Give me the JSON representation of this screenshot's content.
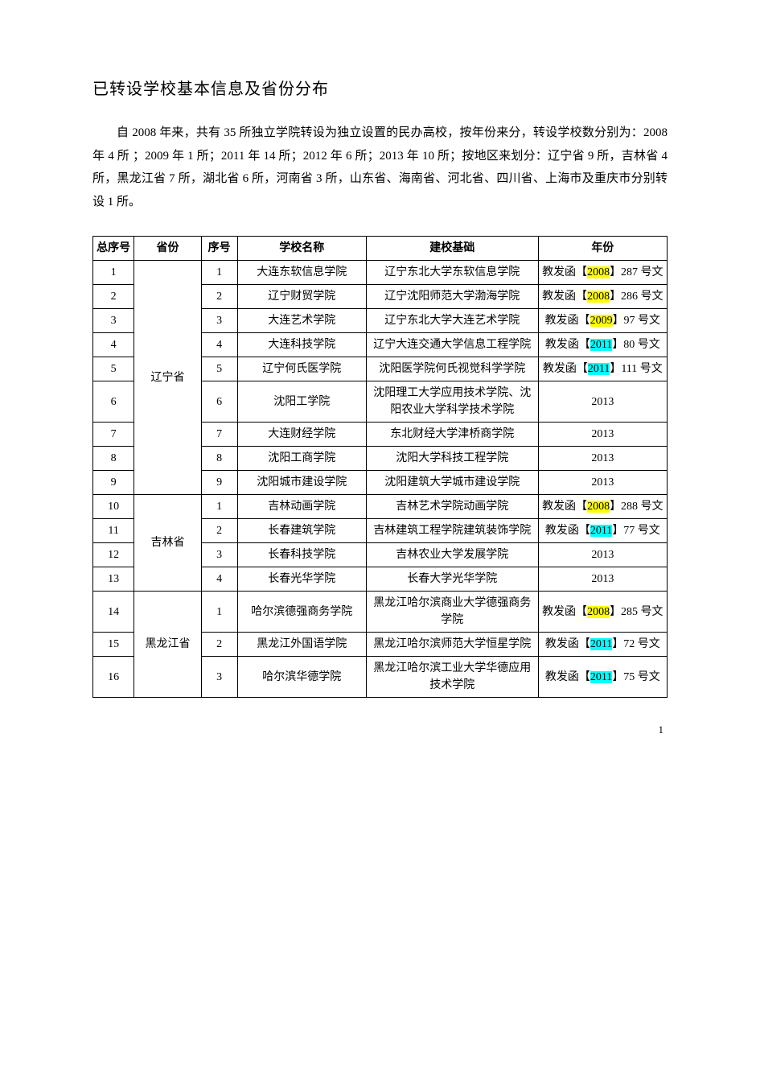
{
  "title": "已转设学校基本信息及省份分布",
  "intro": "自 2008 年来，共有 35 所独立学院转设为独立设置的民办高校，按年份来分，转设学校数分别为：2008 年 4 所 ；2009 年 1 所；2011 年 14 所；2012 年 6 所；2013 年 10 所；按地区来划分：辽宁省 9 所，吉林省 4 所，黑龙江省 7 所，湖北省 6 所，河南省 3 所，山东省、海南省、河北省、四川省、上海市及重庆市分别转设 1 所。",
  "columns": {
    "seq": "总序号",
    "province": "省份",
    "idx": "序号",
    "name": "学校名称",
    "basis": "建校基础",
    "year": "年份"
  },
  "highlight_colors": {
    "yellow": "#ffff00",
    "cyan": "#00ffff"
  },
  "provinces": [
    {
      "name": "辽宁省",
      "rows": [
        {
          "seq": "1",
          "idx": "1",
          "name": "大连东软信息学院",
          "basis": "辽宁东北大学东软信息学院",
          "year_pre": "教发函【",
          "year_hl": "2008",
          "year_post": "】287 号文",
          "hl": "yellow"
        },
        {
          "seq": "2",
          "idx": "2",
          "name": "辽宁财贸学院",
          "basis": "辽宁沈阳师范大学渤海学院",
          "year_pre": "教发函【",
          "year_hl": "2008",
          "year_post": "】286 号文",
          "hl": "yellow"
        },
        {
          "seq": "3",
          "idx": "3",
          "name": "大连艺术学院",
          "basis": "辽宁东北大学大连艺术学院",
          "year_pre": "教发函【",
          "year_hl": "2009",
          "year_post": "】97 号文",
          "hl": "yellow"
        },
        {
          "seq": "4",
          "idx": "4",
          "name": "大连科技学院",
          "basis": "辽宁大连交通大学信息工程学院",
          "year_pre": "教发函【",
          "year_hl": "2011",
          "year_post": "】80 号文",
          "hl": "cyan"
        },
        {
          "seq": "5",
          "idx": "5",
          "name": "辽宁何氏医学院",
          "basis": "沈阳医学院何氏视觉科学学院",
          "year_pre": "教发函【",
          "year_hl": "2011",
          "year_post": "】111 号文",
          "hl": "cyan"
        },
        {
          "seq": "6",
          "idx": "6",
          "name": "沈阳工学院",
          "basis": "沈阳理工大学应用技术学院、沈阳农业大学科学技术学院",
          "year_plain": "2013"
        },
        {
          "seq": "7",
          "idx": "7",
          "name": "大连财经学院",
          "basis": "东北财经大学津桥商学院",
          "year_plain": "2013"
        },
        {
          "seq": "8",
          "idx": "8",
          "name": "沈阳工商学院",
          "basis": "沈阳大学科技工程学院",
          "year_plain": "2013"
        },
        {
          "seq": "9",
          "idx": "9",
          "name": "沈阳城市建设学院",
          "basis": "沈阳建筑大学城市建设学院",
          "year_plain": "2013"
        }
      ]
    },
    {
      "name": "吉林省",
      "rows": [
        {
          "seq": "10",
          "idx": "1",
          "name": "吉林动画学院",
          "basis": "吉林艺术学院动画学院",
          "year_pre": "教发函【",
          "year_hl": "2008",
          "year_post": "】288 号文",
          "hl": "yellow"
        },
        {
          "seq": "11",
          "idx": "2",
          "name": "长春建筑学院",
          "basis": "吉林建筑工程学院建筑装饰学院",
          "year_pre": "教发函【",
          "year_hl": "2011",
          "year_post": "】77 号文",
          "hl": "cyan"
        },
        {
          "seq": "12",
          "idx": "3",
          "name": "长春科技学院",
          "basis": "吉林农业大学发展学院",
          "year_plain": "2013"
        },
        {
          "seq": "13",
          "idx": "4",
          "name": "长春光华学院",
          "basis": "长春大学光华学院",
          "year_plain": "2013"
        }
      ]
    },
    {
      "name": "黑龙江省",
      "rows": [
        {
          "seq": "14",
          "idx": "1",
          "name": "哈尔滨德强商务学院",
          "basis": "黑龙江哈尔滨商业大学德强商务学院",
          "year_pre": "教发函【",
          "year_hl": "2008",
          "year_post": "】285 号文",
          "hl": "yellow"
        },
        {
          "seq": "15",
          "idx": "2",
          "name": "黑龙江外国语学院",
          "basis": "黑龙江哈尔滨师范大学恒星学院",
          "year_pre": "教发函【",
          "year_hl": "2011",
          "year_post": "】72 号文",
          "hl": "cyan"
        },
        {
          "seq": "16",
          "idx": "3",
          "name": "哈尔滨华德学院",
          "basis": "黑龙江哈尔滨工业大学华德应用技术学院",
          "year_pre": "教发函【",
          "year_hl": "2011",
          "year_post": "】75 号文",
          "hl": "cyan"
        }
      ]
    }
  ],
  "page_number": "1"
}
